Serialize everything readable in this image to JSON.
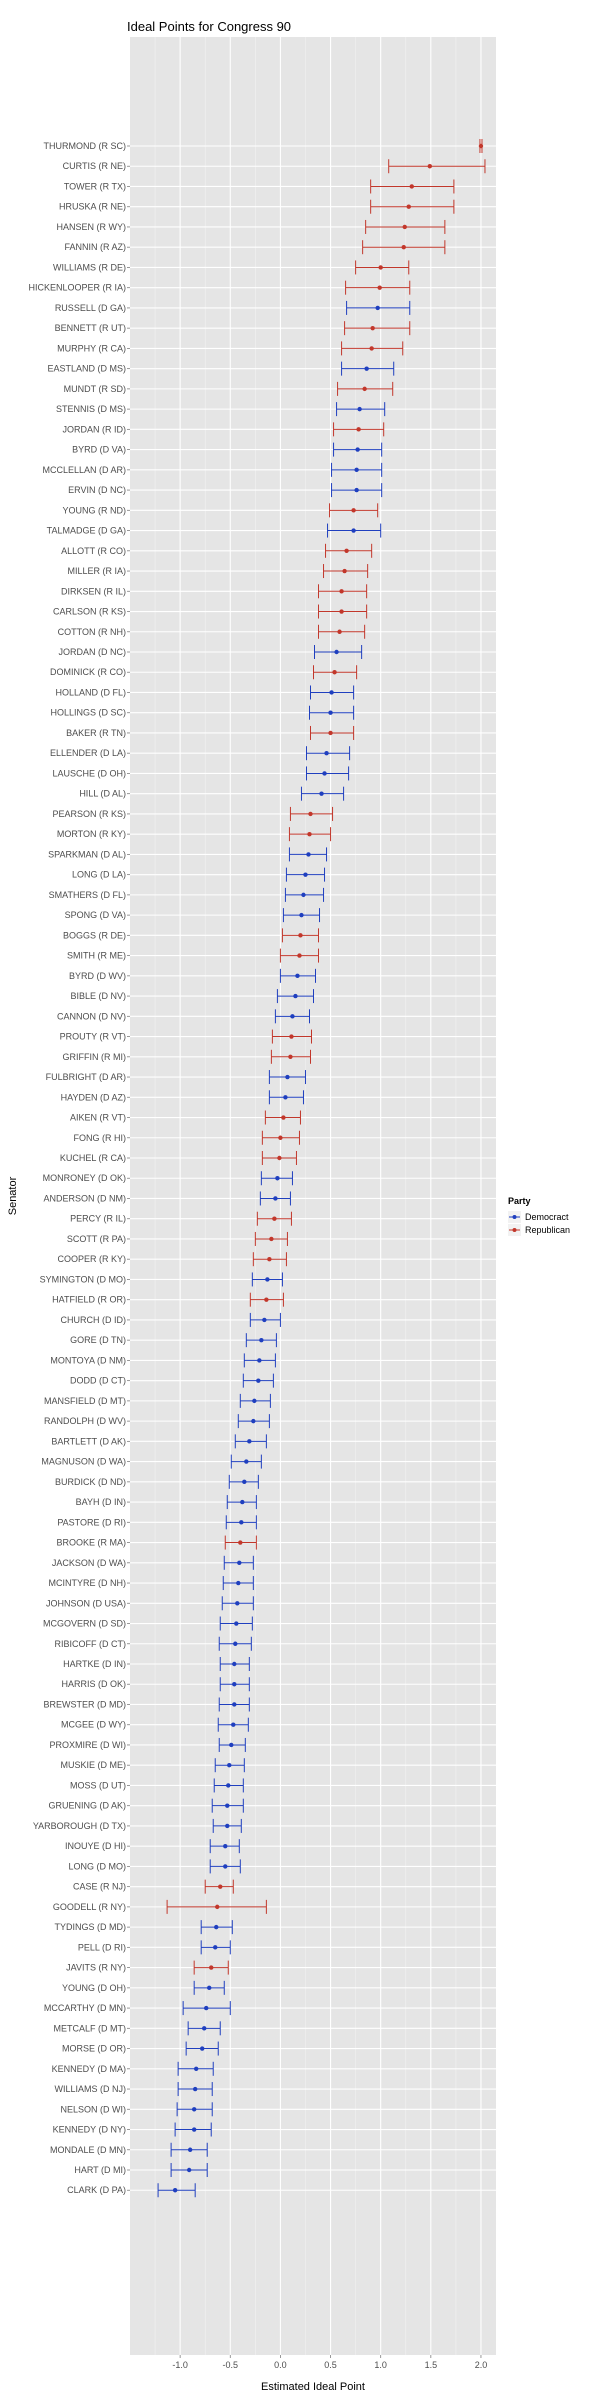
{
  "chart_data": {
    "type": "scatter",
    "title": "Ideal Points for Congress 90",
    "xlabel": "Estimated Ideal Point",
    "ylabel": "Senator",
    "xlim": [
      -1.5,
      2.15
    ],
    "xticks": [
      "-1.0",
      "-0.5",
      "0.0",
      "0.5",
      "1.0",
      "1.5",
      "2.0"
    ],
    "grid": true,
    "legend": {
      "title": "Party",
      "position": "right",
      "entries": [
        {
          "name": "Democract",
          "color": "#1f3fbf"
        },
        {
          "name": "Republican",
          "color": "#c2372b"
        }
      ]
    },
    "colors": {
      "Democract": "#1f3fbf",
      "Republican": "#c2372b",
      "panel": "#e5e5e5",
      "grid": "#ffffff"
    },
    "points": [
      {
        "label": "THURMOND (R SC)",
        "party": "Republican",
        "x": 2.0,
        "lo": 1.99,
        "hi": 2.01
      },
      {
        "label": "CURTIS (R NE)",
        "party": "Republican",
        "x": 1.49,
        "lo": 1.08,
        "hi": 2.04
      },
      {
        "label": "TOWER (R TX)",
        "party": "Republican",
        "x": 1.31,
        "lo": 0.9,
        "hi": 1.73
      },
      {
        "label": "HRUSKA (R NE)",
        "party": "Republican",
        "x": 1.28,
        "lo": 0.9,
        "hi": 1.73
      },
      {
        "label": "HANSEN (R WY)",
        "party": "Republican",
        "x": 1.24,
        "lo": 0.85,
        "hi": 1.64
      },
      {
        "label": "FANNIN (R AZ)",
        "party": "Republican",
        "x": 1.23,
        "lo": 0.82,
        "hi": 1.64
      },
      {
        "label": "WILLIAMS (R DE)",
        "party": "Republican",
        "x": 1.0,
        "lo": 0.75,
        "hi": 1.28
      },
      {
        "label": "HICKENLOOPER (R IA)",
        "party": "Republican",
        "x": 0.99,
        "lo": 0.65,
        "hi": 1.29
      },
      {
        "label": "RUSSELL (D GA)",
        "party": "Democract",
        "x": 0.97,
        "lo": 0.66,
        "hi": 1.29
      },
      {
        "label": "BENNETT (R UT)",
        "party": "Republican",
        "x": 0.92,
        "lo": 0.64,
        "hi": 1.29
      },
      {
        "label": "MURPHY (R CA)",
        "party": "Republican",
        "x": 0.91,
        "lo": 0.61,
        "hi": 1.22
      },
      {
        "label": "EASTLAND (D MS)",
        "party": "Democract",
        "x": 0.86,
        "lo": 0.61,
        "hi": 1.13
      },
      {
        "label": "MUNDT (R SD)",
        "party": "Republican",
        "x": 0.84,
        "lo": 0.57,
        "hi": 1.12
      },
      {
        "label": "STENNIS (D MS)",
        "party": "Democract",
        "x": 0.79,
        "lo": 0.56,
        "hi": 1.04
      },
      {
        "label": "JORDAN (R ID)",
        "party": "Republican",
        "x": 0.78,
        "lo": 0.53,
        "hi": 1.03
      },
      {
        "label": "BYRD (D VA)",
        "party": "Democract",
        "x": 0.77,
        "lo": 0.53,
        "hi": 1.01
      },
      {
        "label": "MCCLELLAN (D AR)",
        "party": "Democract",
        "x": 0.76,
        "lo": 0.51,
        "hi": 1.01
      },
      {
        "label": "ERVIN (D NC)",
        "party": "Democract",
        "x": 0.76,
        "lo": 0.51,
        "hi": 1.01
      },
      {
        "label": "YOUNG (R ND)",
        "party": "Republican",
        "x": 0.73,
        "lo": 0.49,
        "hi": 0.97
      },
      {
        "label": "TALMADGE (D GA)",
        "party": "Democract",
        "x": 0.73,
        "lo": 0.47,
        "hi": 1.0
      },
      {
        "label": "ALLOTT (R CO)",
        "party": "Republican",
        "x": 0.66,
        "lo": 0.45,
        "hi": 0.91
      },
      {
        "label": "MILLER (R IA)",
        "party": "Republican",
        "x": 0.64,
        "lo": 0.43,
        "hi": 0.87
      },
      {
        "label": "DIRKSEN (R IL)",
        "party": "Republican",
        "x": 0.61,
        "lo": 0.38,
        "hi": 0.86
      },
      {
        "label": "CARLSON (R KS)",
        "party": "Republican",
        "x": 0.61,
        "lo": 0.38,
        "hi": 0.86
      },
      {
        "label": "COTTON (R NH)",
        "party": "Republican",
        "x": 0.59,
        "lo": 0.38,
        "hi": 0.84
      },
      {
        "label": "JORDAN (D NC)",
        "party": "Democract",
        "x": 0.56,
        "lo": 0.34,
        "hi": 0.81
      },
      {
        "label": "DOMINICK (R CO)",
        "party": "Republican",
        "x": 0.54,
        "lo": 0.33,
        "hi": 0.76
      },
      {
        "label": "HOLLAND (D FL)",
        "party": "Democract",
        "x": 0.51,
        "lo": 0.3,
        "hi": 0.73
      },
      {
        "label": "HOLLINGS (D SC)",
        "party": "Democract",
        "x": 0.5,
        "lo": 0.29,
        "hi": 0.73
      },
      {
        "label": "BAKER (R TN)",
        "party": "Republican",
        "x": 0.5,
        "lo": 0.3,
        "hi": 0.73
      },
      {
        "label": "ELLENDER (D LA)",
        "party": "Democract",
        "x": 0.46,
        "lo": 0.26,
        "hi": 0.69
      },
      {
        "label": "LAUSCHE (D OH)",
        "party": "Democract",
        "x": 0.44,
        "lo": 0.26,
        "hi": 0.68
      },
      {
        "label": "HILL (D AL)",
        "party": "Democract",
        "x": 0.41,
        "lo": 0.21,
        "hi": 0.63
      },
      {
        "label": "PEARSON (R KS)",
        "party": "Republican",
        "x": 0.3,
        "lo": 0.1,
        "hi": 0.52
      },
      {
        "label": "MORTON (R KY)",
        "party": "Republican",
        "x": 0.29,
        "lo": 0.09,
        "hi": 0.5
      },
      {
        "label": "SPARKMAN (D AL)",
        "party": "Democract",
        "x": 0.28,
        "lo": 0.09,
        "hi": 0.46
      },
      {
        "label": "LONG (D LA)",
        "party": "Democract",
        "x": 0.25,
        "lo": 0.06,
        "hi": 0.44
      },
      {
        "label": "SMATHERS (D FL)",
        "party": "Democract",
        "x": 0.23,
        "lo": 0.05,
        "hi": 0.43
      },
      {
        "label": "SPONG (D VA)",
        "party": "Democract",
        "x": 0.21,
        "lo": 0.03,
        "hi": 0.39
      },
      {
        "label": "BOGGS (R DE)",
        "party": "Republican",
        "x": 0.2,
        "lo": 0.02,
        "hi": 0.38
      },
      {
        "label": "SMITH (R ME)",
        "party": "Republican",
        "x": 0.19,
        "lo": 0.0,
        "hi": 0.38
      },
      {
        "label": "BYRD (D WV)",
        "party": "Democract",
        "x": 0.17,
        "lo": 0.0,
        "hi": 0.35
      },
      {
        "label": "BIBLE (D NV)",
        "party": "Democract",
        "x": 0.15,
        "lo": -0.03,
        "hi": 0.33
      },
      {
        "label": "CANNON (D NV)",
        "party": "Democract",
        "x": 0.12,
        "lo": -0.05,
        "hi": 0.29
      },
      {
        "label": "PROUTY (R VT)",
        "party": "Republican",
        "x": 0.11,
        "lo": -0.08,
        "hi": 0.31
      },
      {
        "label": "GRIFFIN (R MI)",
        "party": "Republican",
        "x": 0.1,
        "lo": -0.09,
        "hi": 0.3
      },
      {
        "label": "FULBRIGHT (D AR)",
        "party": "Democract",
        "x": 0.07,
        "lo": -0.11,
        "hi": 0.25
      },
      {
        "label": "HAYDEN (D AZ)",
        "party": "Democract",
        "x": 0.05,
        "lo": -0.11,
        "hi": 0.23
      },
      {
        "label": "AIKEN (R VT)",
        "party": "Republican",
        "x": 0.03,
        "lo": -0.15,
        "hi": 0.2
      },
      {
        "label": "FONG (R HI)",
        "party": "Republican",
        "x": 0.0,
        "lo": -0.18,
        "hi": 0.19
      },
      {
        "label": "KUCHEL (R CA)",
        "party": "Republican",
        "x": -0.01,
        "lo": -0.18,
        "hi": 0.16
      },
      {
        "label": "MONRONEY (D OK)",
        "party": "Democract",
        "x": -0.03,
        "lo": -0.19,
        "hi": 0.12
      },
      {
        "label": "ANDERSON (D NM)",
        "party": "Democract",
        "x": -0.05,
        "lo": -0.2,
        "hi": 0.1
      },
      {
        "label": "PERCY (R IL)",
        "party": "Republican",
        "x": -0.06,
        "lo": -0.23,
        "hi": 0.11
      },
      {
        "label": "SCOTT (R PA)",
        "party": "Republican",
        "x": -0.09,
        "lo": -0.25,
        "hi": 0.07
      },
      {
        "label": "COOPER (R KY)",
        "party": "Republican",
        "x": -0.11,
        "lo": -0.27,
        "hi": 0.06
      },
      {
        "label": "SYMINGTON (D MO)",
        "party": "Democract",
        "x": -0.13,
        "lo": -0.28,
        "hi": 0.02
      },
      {
        "label": "HATFIELD (R OR)",
        "party": "Republican",
        "x": -0.14,
        "lo": -0.3,
        "hi": 0.03
      },
      {
        "label": "CHURCH (D ID)",
        "party": "Democract",
        "x": -0.16,
        "lo": -0.3,
        "hi": 0.0
      },
      {
        "label": "GORE (D TN)",
        "party": "Democract",
        "x": -0.19,
        "lo": -0.34,
        "hi": -0.04
      },
      {
        "label": "MONTOYA (D NM)",
        "party": "Democract",
        "x": -0.21,
        "lo": -0.36,
        "hi": -0.05
      },
      {
        "label": "DODD (D CT)",
        "party": "Democract",
        "x": -0.22,
        "lo": -0.37,
        "hi": -0.07
      },
      {
        "label": "MANSFIELD (D MT)",
        "party": "Democract",
        "x": -0.26,
        "lo": -0.4,
        "hi": -0.1
      },
      {
        "label": "RANDOLPH (D WV)",
        "party": "Democract",
        "x": -0.27,
        "lo": -0.42,
        "hi": -0.11
      },
      {
        "label": "BARTLETT (D AK)",
        "party": "Democract",
        "x": -0.31,
        "lo": -0.45,
        "hi": -0.14
      },
      {
        "label": "MAGNUSON (D WA)",
        "party": "Democract",
        "x": -0.34,
        "lo": -0.49,
        "hi": -0.19
      },
      {
        "label": "BURDICK (D ND)",
        "party": "Democract",
        "x": -0.36,
        "lo": -0.51,
        "hi": -0.22
      },
      {
        "label": "BAYH (D IN)",
        "party": "Democract",
        "x": -0.38,
        "lo": -0.53,
        "hi": -0.24
      },
      {
        "label": "PASTORE (D RI)",
        "party": "Democract",
        "x": -0.39,
        "lo": -0.54,
        "hi": -0.24
      },
      {
        "label": "BROOKE (R MA)",
        "party": "Republican",
        "x": -0.4,
        "lo": -0.55,
        "hi": -0.24
      },
      {
        "label": "JACKSON (D WA)",
        "party": "Democract",
        "x": -0.41,
        "lo": -0.56,
        "hi": -0.27
      },
      {
        "label": "MCINTYRE (D NH)",
        "party": "Democract",
        "x": -0.42,
        "lo": -0.57,
        "hi": -0.27
      },
      {
        "label": "JOHNSON (D USA)",
        "party": "Democract",
        "x": -0.43,
        "lo": -0.58,
        "hi": -0.27
      },
      {
        "label": "MCGOVERN (D SD)",
        "party": "Democract",
        "x": -0.44,
        "lo": -0.6,
        "hi": -0.28
      },
      {
        "label": "RIBICOFF (D CT)",
        "party": "Democract",
        "x": -0.45,
        "lo": -0.61,
        "hi": -0.29
      },
      {
        "label": "HARTKE (D IN)",
        "party": "Democract",
        "x": -0.46,
        "lo": -0.6,
        "hi": -0.31
      },
      {
        "label": "HARRIS (D OK)",
        "party": "Democract",
        "x": -0.46,
        "lo": -0.6,
        "hi": -0.31
      },
      {
        "label": "BREWSTER (D MD)",
        "party": "Democract",
        "x": -0.46,
        "lo": -0.61,
        "hi": -0.31
      },
      {
        "label": "MCGEE (D WY)",
        "party": "Democract",
        "x": -0.47,
        "lo": -0.62,
        "hi": -0.32
      },
      {
        "label": "PROXMIRE (D WI)",
        "party": "Democract",
        "x": -0.49,
        "lo": -0.61,
        "hi": -0.35
      },
      {
        "label": "MUSKIE (D ME)",
        "party": "Democract",
        "x": -0.51,
        "lo": -0.65,
        "hi": -0.36
      },
      {
        "label": "MOSS (D UT)",
        "party": "Democract",
        "x": -0.52,
        "lo": -0.66,
        "hi": -0.37
      },
      {
        "label": "GRUENING (D AK)",
        "party": "Democract",
        "x": -0.53,
        "lo": -0.68,
        "hi": -0.37
      },
      {
        "label": "YARBOROUGH (D TX)",
        "party": "Democract",
        "x": -0.53,
        "lo": -0.67,
        "hi": -0.39
      },
      {
        "label": "INOUYE (D HI)",
        "party": "Democract",
        "x": -0.55,
        "lo": -0.7,
        "hi": -0.41
      },
      {
        "label": "LONG (D MO)",
        "party": "Democract",
        "x": -0.55,
        "lo": -0.7,
        "hi": -0.4
      },
      {
        "label": "CASE (R NJ)",
        "party": "Republican",
        "x": -0.6,
        "lo": -0.75,
        "hi": -0.47
      },
      {
        "label": "GOODELL (R NY)",
        "party": "Republican",
        "x": -0.63,
        "lo": -1.13,
        "hi": -0.14
      },
      {
        "label": "TYDINGS (D MD)",
        "party": "Democract",
        "x": -0.64,
        "lo": -0.79,
        "hi": -0.48
      },
      {
        "label": "PELL (D RI)",
        "party": "Democract",
        "x": -0.65,
        "lo": -0.79,
        "hi": -0.5
      },
      {
        "label": "JAVITS (R NY)",
        "party": "Republican",
        "x": -0.69,
        "lo": -0.86,
        "hi": -0.52
      },
      {
        "label": "YOUNG (D OH)",
        "party": "Democract",
        "x": -0.71,
        "lo": -0.86,
        "hi": -0.56
      },
      {
        "label": "MCCARTHY (D MN)",
        "party": "Democract",
        "x": -0.74,
        "lo": -0.97,
        "hi": -0.5
      },
      {
        "label": "METCALF (D MT)",
        "party": "Democract",
        "x": -0.76,
        "lo": -0.92,
        "hi": -0.6
      },
      {
        "label": "MORSE (D OR)",
        "party": "Democract",
        "x": -0.78,
        "lo": -0.94,
        "hi": -0.62
      },
      {
        "label": "KENNEDY (D MA)",
        "party": "Democract",
        "x": -0.84,
        "lo": -1.02,
        "hi": -0.67
      },
      {
        "label": "WILLIAMS (D NJ)",
        "party": "Democract",
        "x": -0.85,
        "lo": -1.02,
        "hi": -0.68
      },
      {
        "label": "NELSON (D WI)",
        "party": "Democract",
        "x": -0.86,
        "lo": -1.03,
        "hi": -0.68
      },
      {
        "label": "KENNEDY (D NY)",
        "party": "Democract",
        "x": -0.86,
        "lo": -1.05,
        "hi": -0.69
      },
      {
        "label": "MONDALE (D MN)",
        "party": "Democract",
        "x": -0.9,
        "lo": -1.09,
        "hi": -0.73
      },
      {
        "label": "HART (D MI)",
        "party": "Democract",
        "x": -0.91,
        "lo": -1.09,
        "hi": -0.73
      },
      {
        "label": "CLARK (D PA)",
        "party": "Democract",
        "x": -1.05,
        "lo": -1.22,
        "hi": -0.85
      }
    ]
  }
}
